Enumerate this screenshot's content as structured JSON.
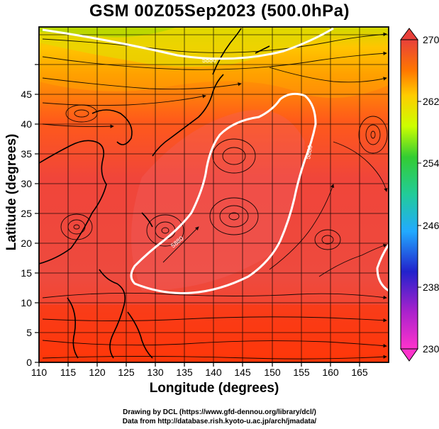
{
  "title": "GSM 00Z05Sep2023 (500.0hPa)",
  "x_axis": {
    "label": "Longitude (degrees)",
    "range": [
      110,
      170
    ],
    "ticks": [
      "110",
      "115",
      "120",
      "125",
      "130",
      "135",
      "140",
      "145",
      "150",
      "155",
      "160",
      "165"
    ]
  },
  "y_axis": {
    "label": "Latitude  (degrees)",
    "range": [
      0,
      50
    ],
    "ticks": [
      "0",
      "5",
      "10",
      "15",
      "20",
      "25",
      "30",
      "35",
      "40",
      "45"
    ]
  },
  "colorbar": {
    "range": [
      230,
      270
    ],
    "labels": [
      "270",
      "262",
      "254",
      "246",
      "238",
      "230"
    ],
    "colors": [
      "#cc33cc",
      "#3333cc",
      "#33ccff",
      "#33cc33",
      "#ccff00",
      "#ffaa00",
      "#ff5500",
      "#e8403a"
    ]
  },
  "contour_labels": [
    "5880",
    "5880",
    "5880"
  ],
  "credits": {
    "line1": "Drawing by DCL (https://www.gfd-dennou.org/library/dcl/)",
    "line2": "Data from http://database.rish.kyoto-u.ac.jp/arch/jmadata/"
  }
}
